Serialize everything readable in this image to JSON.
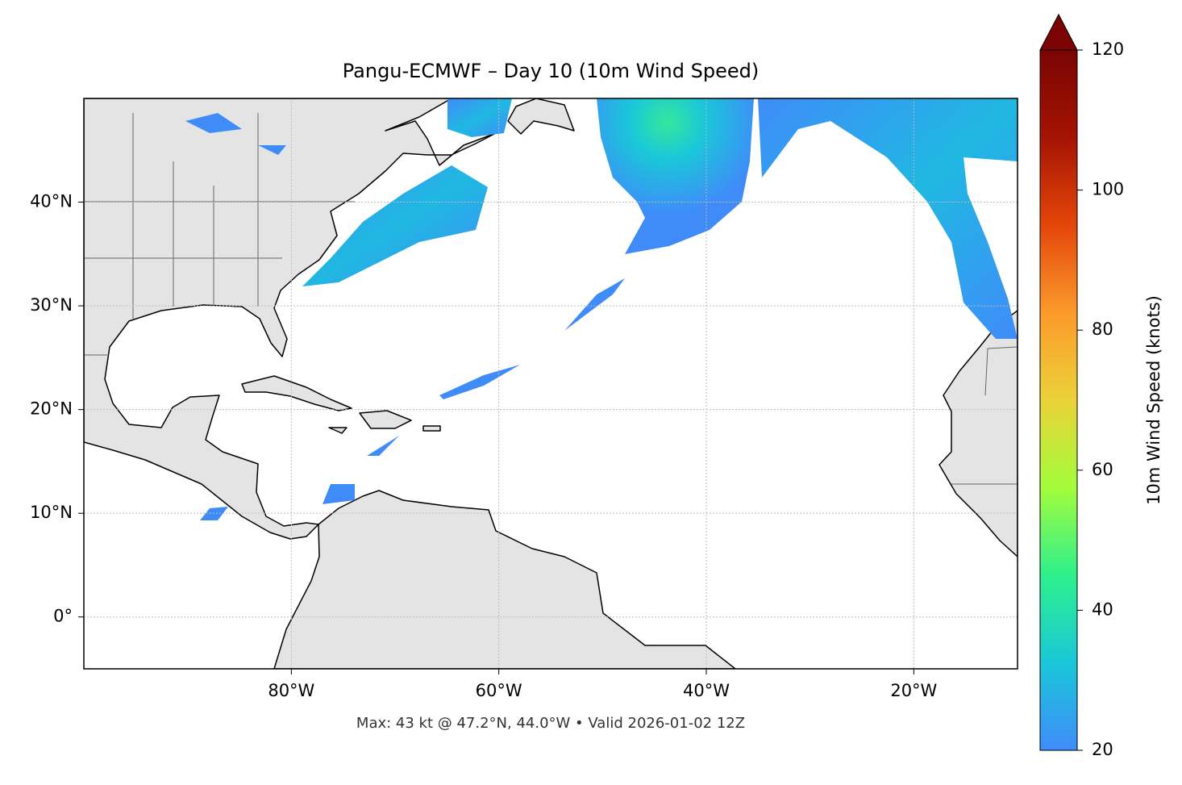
{
  "chart_data": {
    "type": "map",
    "title": "Pangu-ECMWF – Day 10 (10m Wind Speed)",
    "annotation": "Max: 43 kt @ 47.2°N, 44.0°W • Valid 2026-01-02 12Z",
    "xlim": [
      -100,
      -10
    ],
    "ylim": [
      -5,
      50
    ],
    "xticks": [
      {
        "value": -80,
        "label": "80°W"
      },
      {
        "value": -60,
        "label": "60°W"
      },
      {
        "value": -40,
        "label": "40°W"
      },
      {
        "value": -20,
        "label": "20°W"
      }
    ],
    "yticks": [
      {
        "value": 0,
        "label": "0°"
      },
      {
        "value": 10,
        "label": "10°N"
      },
      {
        "value": 20,
        "label": "20°N"
      },
      {
        "value": 30,
        "label": "30°N"
      },
      {
        "value": 40,
        "label": "40°N"
      }
    ],
    "grid": true,
    "colorbar": {
      "label": "10m Wind Speed (knots)",
      "vlim": [
        20,
        120
      ],
      "ticks": [
        20,
        40,
        60,
        80,
        100,
        120
      ],
      "colors": [
        "#3f8cf9",
        "#1ac7d9",
        "#2ef08c",
        "#a3fc3c",
        "#ebd239",
        "#fb9a2b",
        "#e4460a",
        "#a41403",
        "#7a0403"
      ],
      "extend": "max"
    }
  }
}
